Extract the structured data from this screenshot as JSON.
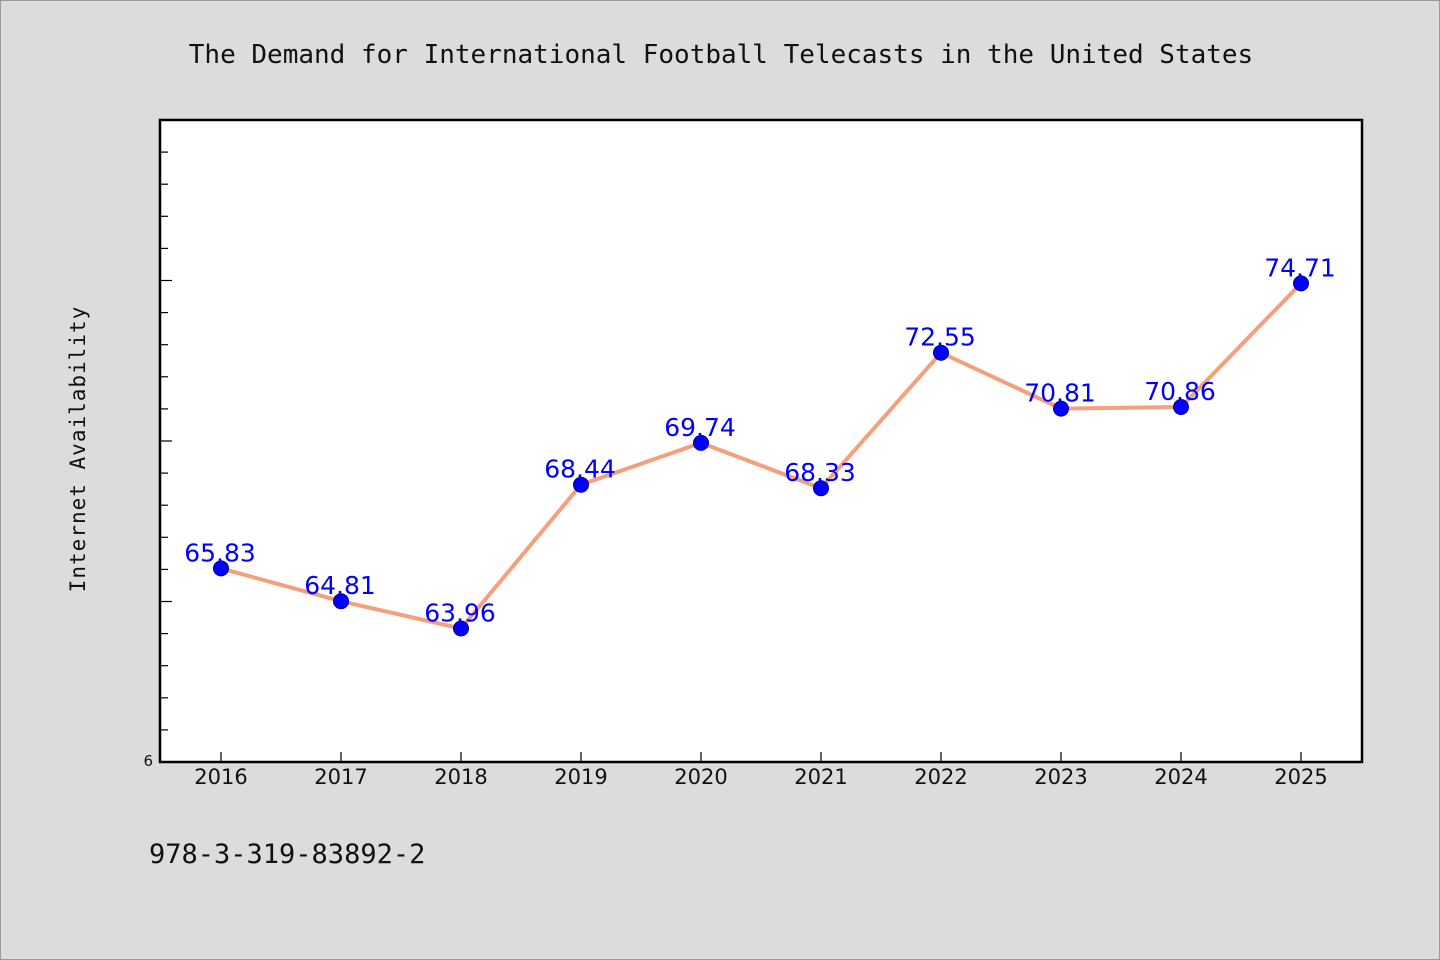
{
  "chart_data": {
    "type": "line",
    "title": "The Demand for International Football Telecasts in the United States",
    "xlabel": "",
    "ylabel": "Internet Availability",
    "categories": [
      "2016",
      "2017",
      "2018",
      "2019",
      "2020",
      "2021",
      "2022",
      "2023",
      "2024",
      "2025"
    ],
    "series": [
      {
        "values": [
          65.83,
          64.81,
          63.96,
          68.44,
          69.74,
          68.33,
          72.55,
          70.81,
          70.86,
          74.71
        ],
        "labels": [
          "65.83",
          "64.81",
          "63.96",
          "68.44",
          "69.74",
          "68.33",
          "72.55",
          "70.81",
          "70.86",
          "74.71"
        ],
        "line_color": "#f4a07e",
        "marker_color": "#0000ff"
      }
    ],
    "ylim": [
      59.8,
      79.8
    ],
    "ytick_label": "6",
    "grid": false,
    "legend": "none"
  },
  "footer": {
    "text": "978-3-319-83892-2"
  }
}
